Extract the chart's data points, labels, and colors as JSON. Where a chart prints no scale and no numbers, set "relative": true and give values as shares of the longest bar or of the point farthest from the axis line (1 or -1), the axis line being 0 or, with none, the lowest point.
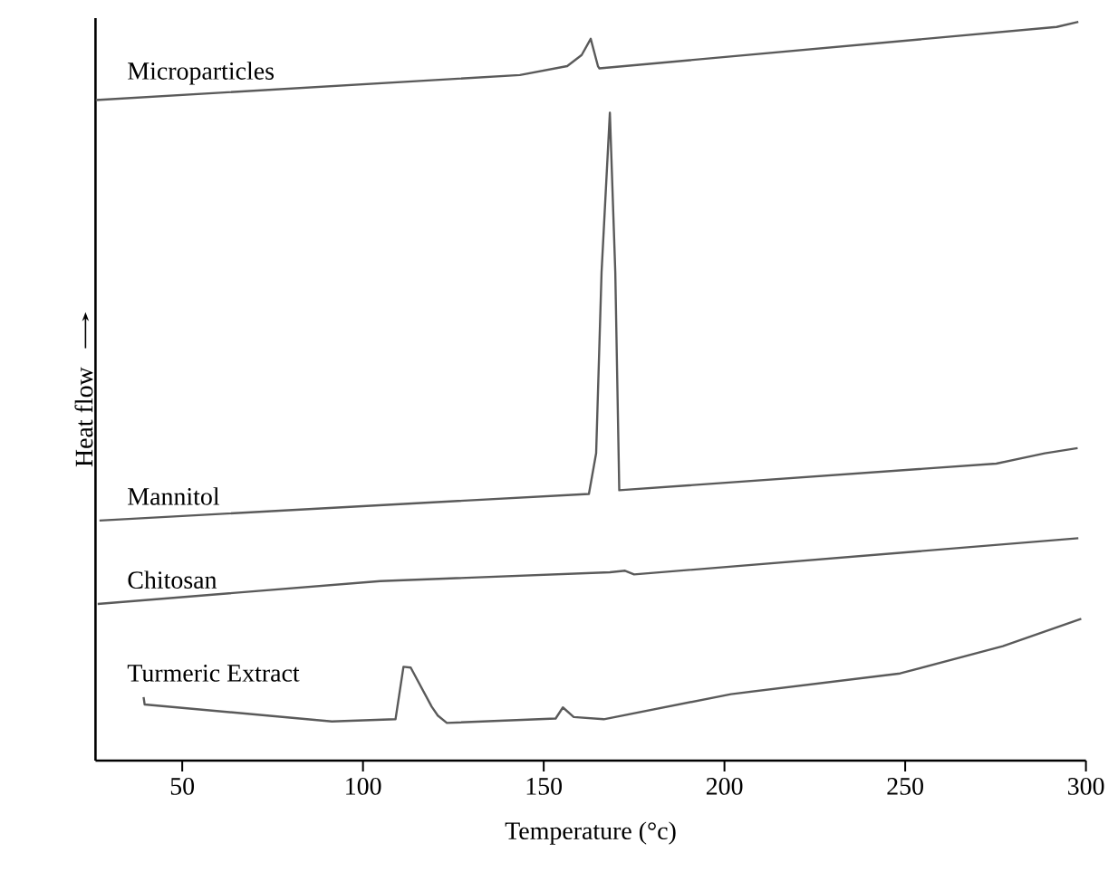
{
  "chart_data": {
    "type": "line",
    "relative": true,
    "xlabel": "Temperature (°c)",
    "ylabel": "Heat flow",
    "xlim": [
      26,
      300
    ],
    "xticks": [
      50,
      100,
      150,
      200,
      250,
      300
    ],
    "series": [
      {
        "name": "Microparticles",
        "color": "#5a5a5a",
        "x": [
          26.1,
          143.4,
          156.5,
          160.5,
          163.0,
          165.0,
          165.4,
          291.9,
          297.9
        ],
        "values": [
          0.894,
          0.928,
          0.94,
          0.955,
          0.977,
          0.94,
          0.937,
          0.993,
          1.0
        ]
      },
      {
        "name": "Mannitol",
        "color": "#5a5a5a",
        "x": [
          27.1,
          162.5,
          164.5,
          166.0,
          168.3,
          169.8,
          170.9,
          275.2,
          288.6,
          297.7
        ],
        "values": [
          0.325,
          0.361,
          0.416,
          0.661,
          0.877,
          0.661,
          0.366,
          0.402,
          0.416,
          0.423
        ]
      },
      {
        "name": "Chitosan",
        "color": "#5a5a5a",
        "x": [
          26.6,
          104.8,
          168.3,
          172.5,
          175.0,
          297.9
        ],
        "values": [
          0.212,
          0.243,
          0.255,
          0.257,
          0.252,
          0.301
        ]
      },
      {
        "name": "Turmeric Extract",
        "color": "#5a5a5a",
        "x": [
          39.3,
          39.6,
          91.4,
          109.0,
          111.2,
          113.2,
          119.0,
          120.7,
          123.2,
          153.3,
          155.3,
          158.3,
          166.6,
          201.8,
          248.6,
          277.0,
          298.7
        ],
        "values": [
          0.086,
          0.076,
          0.053,
          0.056,
          0.127,
          0.126,
          0.073,
          0.061,
          0.051,
          0.057,
          0.072,
          0.059,
          0.056,
          0.09,
          0.118,
          0.155,
          0.192
        ]
      }
    ]
  }
}
